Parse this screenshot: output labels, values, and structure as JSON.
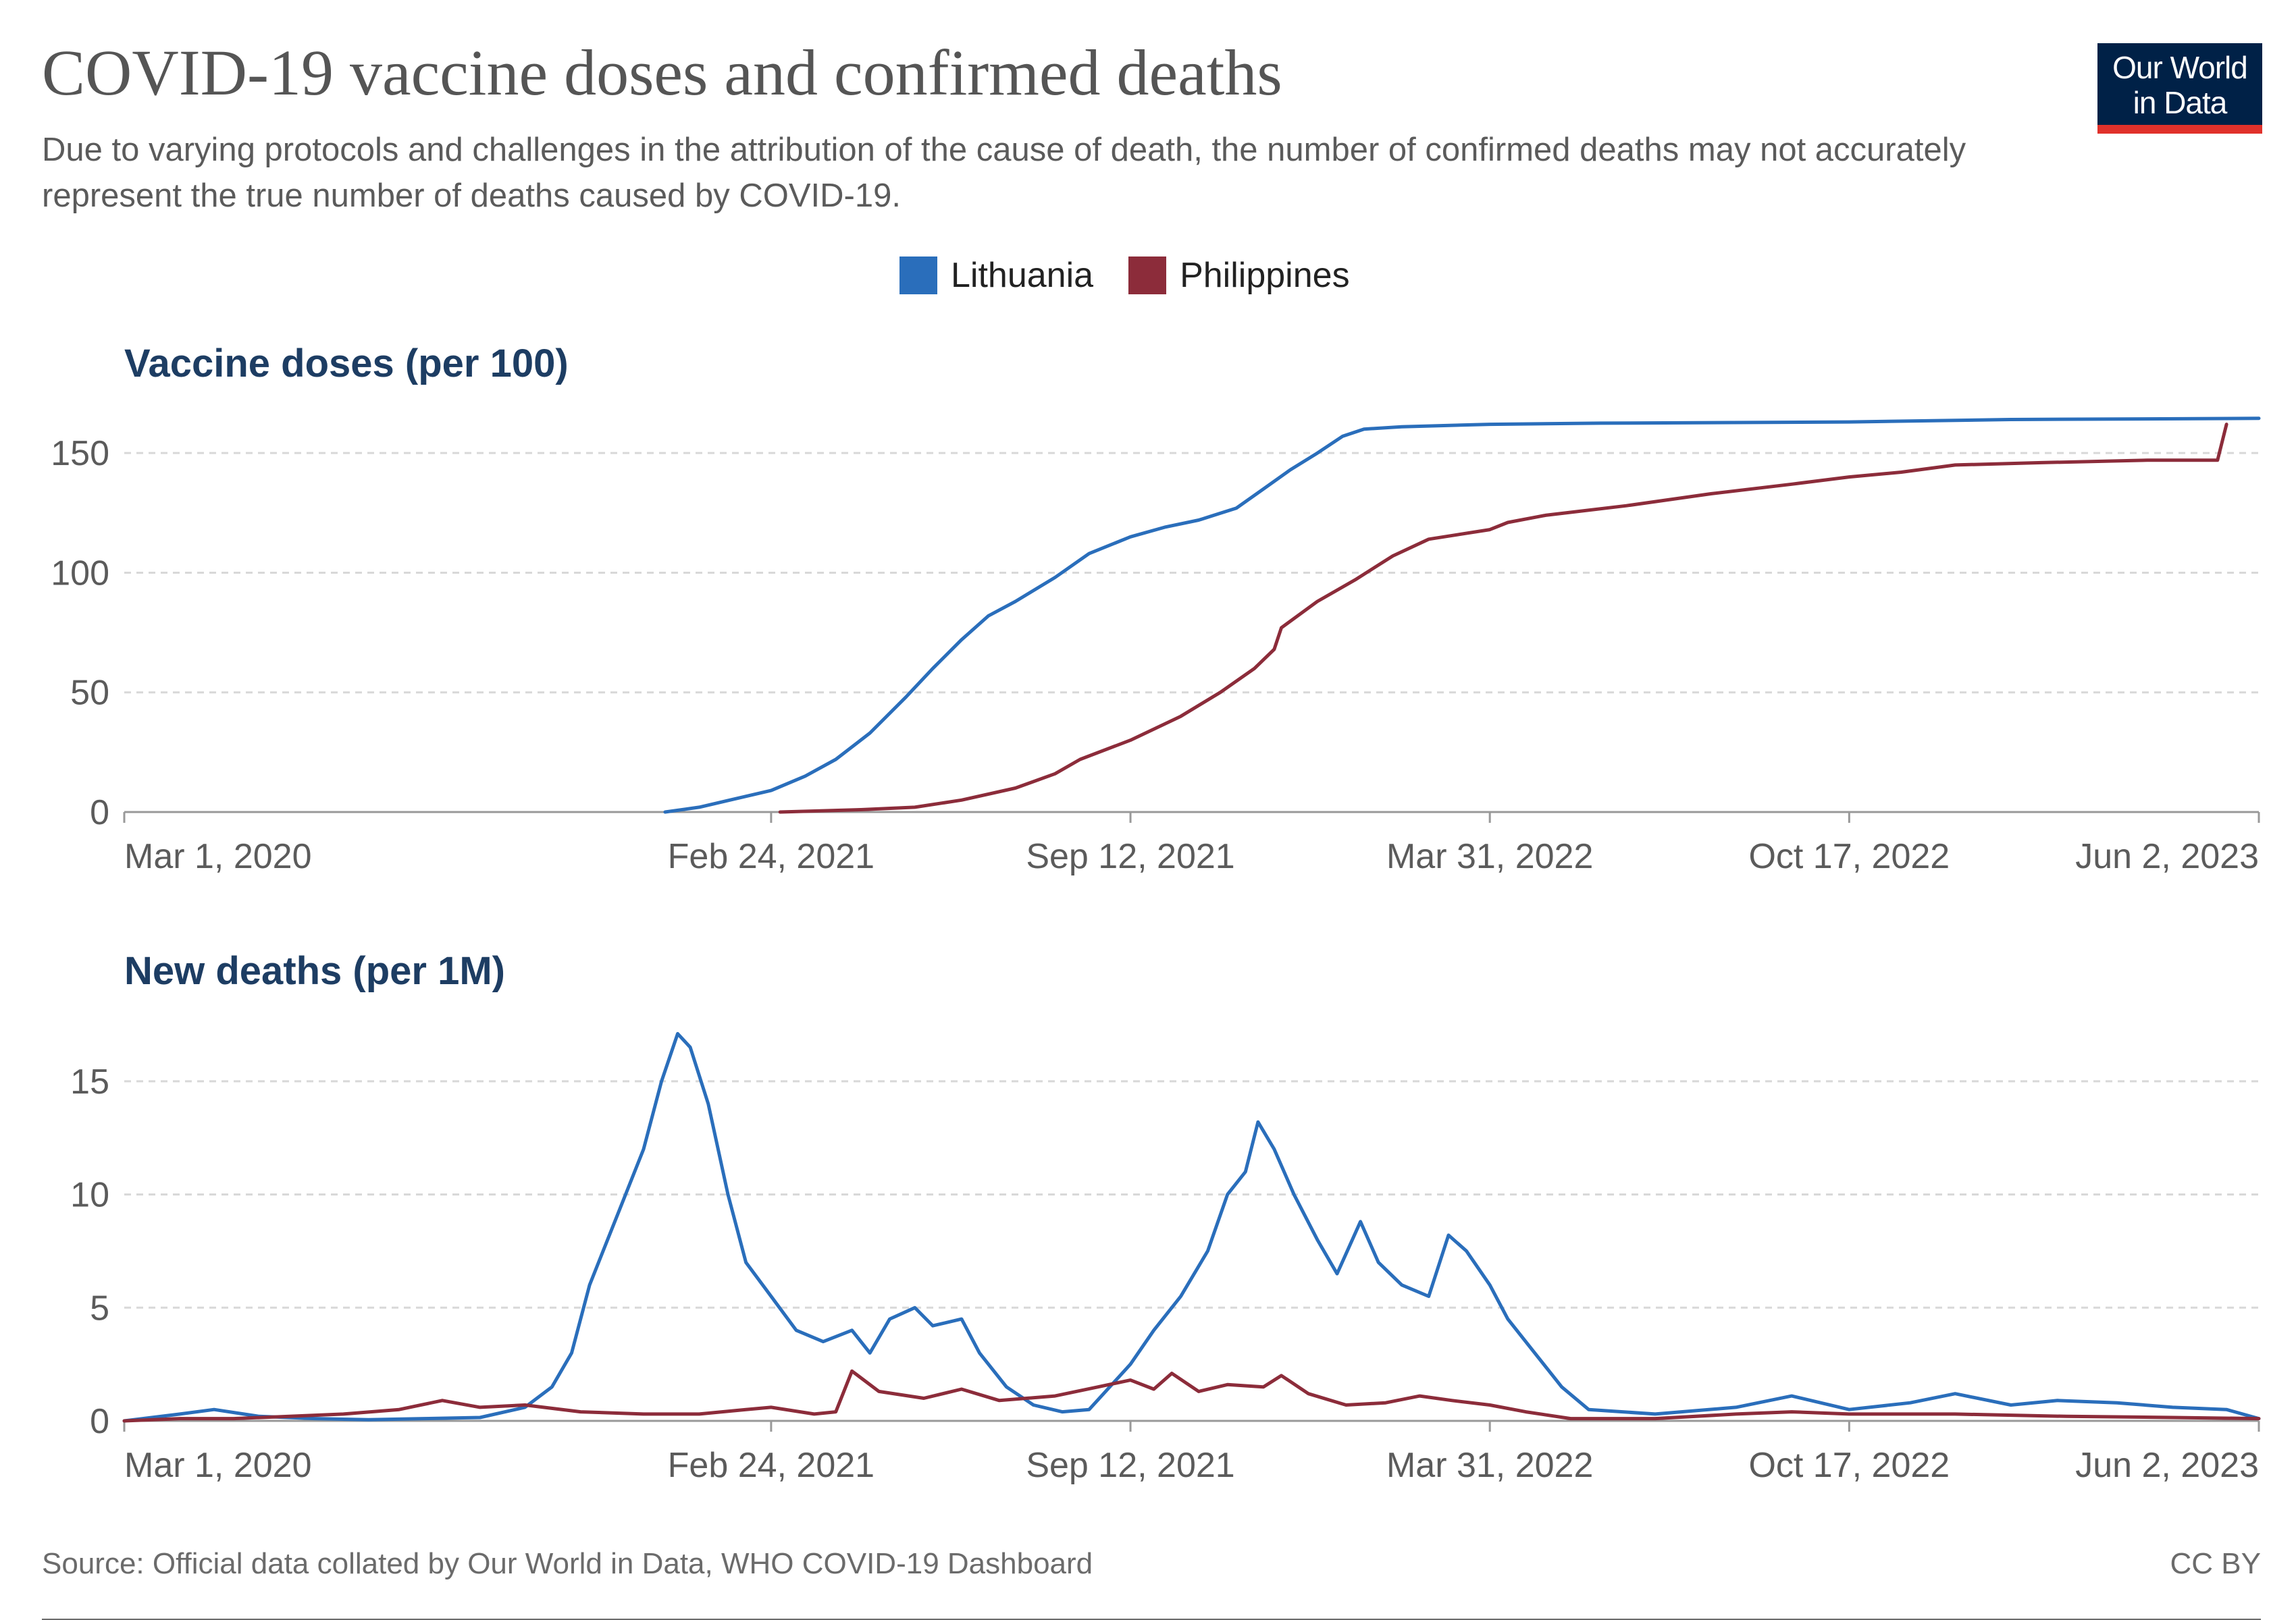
{
  "title": "COVID-19 vaccine doses and confirmed deaths",
  "subtitle": "Due to varying protocols and challenges in the attribution of the cause of death, the number of confirmed deaths may not accurately represent the true number of deaths caused by COVID-19.",
  "logo": {
    "line1": "Our World",
    "line2": "in Data"
  },
  "legend": [
    {
      "name": "Lithuania",
      "color": "#2a6ebb"
    },
    {
      "name": "Philippines",
      "color": "#8c2c3a"
    }
  ],
  "source": "Source: Official data collated by Our World in Data, WHO COVID-19 Dashboard",
  "license": "CC BY",
  "chart_data": [
    {
      "type": "line",
      "title": "Vaccine doses (per 100)",
      "xlabel": "",
      "ylabel": "",
      "x_range": [
        "2020-03-01",
        "2023-06-02"
      ],
      "ylim": [
        0,
        165
      ],
      "yticks": [
        "0",
        "50",
        "100",
        "150"
      ],
      "xticks": [
        "Mar 1, 2020",
        "Feb 24, 2021",
        "Sep 12, 2021",
        "Mar 31, 2022",
        "Oct 17, 2022",
        "Jun 2, 2023"
      ],
      "grid": true,
      "series": [
        {
          "name": "Lithuania",
          "color": "#2a6ebb",
          "points": [
            [
              "2020-12-27",
              0
            ],
            [
              "2021-01-15",
              2
            ],
            [
              "2021-02-01",
              5
            ],
            [
              "2021-02-24",
              9
            ],
            [
              "2021-03-15",
              15
            ],
            [
              "2021-04-01",
              22
            ],
            [
              "2021-04-20",
              33
            ],
            [
              "2021-05-10",
              48
            ],
            [
              "2021-05-25",
              60
            ],
            [
              "2021-06-10",
              72
            ],
            [
              "2021-06-25",
              82
            ],
            [
              "2021-07-10",
              88
            ],
            [
              "2021-08-01",
              98
            ],
            [
              "2021-08-20",
              108
            ],
            [
              "2021-09-12",
              115
            ],
            [
              "2021-10-01",
              119
            ],
            [
              "2021-10-20",
              122
            ],
            [
              "2021-11-10",
              127
            ],
            [
              "2021-11-25",
              135
            ],
            [
              "2021-12-10",
              143
            ],
            [
              "2021-12-25",
              150
            ],
            [
              "2022-01-08",
              157
            ],
            [
              "2022-01-20",
              160
            ],
            [
              "2022-02-10",
              161
            ],
            [
              "2022-03-31",
              162
            ],
            [
              "2022-06-01",
              162.5
            ],
            [
              "2022-10-17",
              163
            ],
            [
              "2023-01-15",
              164
            ],
            [
              "2023-06-02",
              164.5
            ]
          ]
        },
        {
          "name": "Philippines",
          "color": "#8c2c3a",
          "points": [
            [
              "2021-03-01",
              0
            ],
            [
              "2021-04-15",
              1
            ],
            [
              "2021-05-15",
              2
            ],
            [
              "2021-06-10",
              5
            ],
            [
              "2021-07-10",
              10
            ],
            [
              "2021-08-01",
              16
            ],
            [
              "2021-08-15",
              22
            ],
            [
              "2021-09-12",
              30
            ],
            [
              "2021-10-10",
              40
            ],
            [
              "2021-11-01",
              50
            ],
            [
              "2021-11-20",
              60
            ],
            [
              "2021-12-01",
              68
            ],
            [
              "2021-12-05",
              77
            ],
            [
              "2021-12-25",
              88
            ],
            [
              "2022-01-15",
              97
            ],
            [
              "2022-02-05",
              107
            ],
            [
              "2022-02-25",
              114
            ],
            [
              "2022-03-31",
              118
            ],
            [
              "2022-04-10",
              121
            ],
            [
              "2022-05-01",
              124
            ],
            [
              "2022-06-15",
              128
            ],
            [
              "2022-08-01",
              133
            ],
            [
              "2022-09-15",
              137
            ],
            [
              "2022-10-17",
              140
            ],
            [
              "2022-11-15",
              142
            ],
            [
              "2022-12-15",
              145
            ],
            [
              "2023-02-01",
              146
            ],
            [
              "2023-04-01",
              147
            ],
            [
              "2023-05-10",
              147
            ],
            [
              "2023-05-15",
              162
            ]
          ]
        }
      ]
    },
    {
      "type": "line",
      "title": "New deaths (per 1M)",
      "xlabel": "",
      "ylabel": "",
      "x_range": [
        "2020-03-01",
        "2023-06-02"
      ],
      "ylim": [
        0,
        17.5
      ],
      "yticks": [
        "0",
        "5",
        "10",
        "15"
      ],
      "xticks": [
        "Mar 1, 2020",
        "Feb 24, 2021",
        "Sep 12, 2021",
        "Mar 31, 2022",
        "Oct 17, 2022",
        "Jun 2, 2023"
      ],
      "grid": true,
      "series": [
        {
          "name": "Lithuania",
          "color": "#2a6ebb",
          "points": [
            [
              "2020-03-01",
              0
            ],
            [
              "2020-04-01",
              0.3
            ],
            [
              "2020-04-20",
              0.5
            ],
            [
              "2020-05-15",
              0.2
            ],
            [
              "2020-06-15",
              0.1
            ],
            [
              "2020-07-15",
              0.05
            ],
            [
              "2020-08-15",
              0.1
            ],
            [
              "2020-09-15",
              0.15
            ],
            [
              "2020-10-10",
              0.6
            ],
            [
              "2020-10-25",
              1.5
            ],
            [
              "2020-11-05",
              3
            ],
            [
              "2020-11-15",
              6
            ],
            [
              "2020-11-25",
              8
            ],
            [
              "2020-12-05",
              10
            ],
            [
              "2020-12-15",
              12
            ],
            [
              "2020-12-25",
              15
            ],
            [
              "2021-01-03",
              17.1
            ],
            [
              "2021-01-10",
              16.5
            ],
            [
              "2021-01-20",
              14
            ],
            [
              "2021-01-31",
              10
            ],
            [
              "2021-02-10",
              7
            ],
            [
              "2021-02-24",
              5.5
            ],
            [
              "2021-03-10",
              4
            ],
            [
              "2021-03-25",
              3.5
            ],
            [
              "2021-04-10",
              4
            ],
            [
              "2021-04-20",
              3
            ],
            [
              "2021-05-01",
              4.5
            ],
            [
              "2021-05-15",
              5
            ],
            [
              "2021-05-25",
              4.2
            ],
            [
              "2021-06-10",
              4.5
            ],
            [
              "2021-06-20",
              3
            ],
            [
              "2021-07-05",
              1.5
            ],
            [
              "2021-07-20",
              0.7
            ],
            [
              "2021-08-05",
              0.4
            ],
            [
              "2021-08-20",
              0.5
            ],
            [
              "2021-09-12",
              2.5
            ],
            [
              "2021-09-25",
              4
            ],
            [
              "2021-10-10",
              5.5
            ],
            [
              "2021-10-25",
              7.5
            ],
            [
              "2021-11-05",
              10
            ],
            [
              "2021-11-15",
              11
            ],
            [
              "2021-11-22",
              13.2
            ],
            [
              "2021-12-01",
              12
            ],
            [
              "2021-12-12",
              10
            ],
            [
              "2021-12-25",
              8
            ],
            [
              "2022-01-05",
              6.5
            ],
            [
              "2022-01-18",
              8.8
            ],
            [
              "2022-01-28",
              7
            ],
            [
              "2022-02-10",
              6
            ],
            [
              "2022-02-25",
              5.5
            ],
            [
              "2022-03-08",
              8.2
            ],
            [
              "2022-03-18",
              7.5
            ],
            [
              "2022-03-31",
              6
            ],
            [
              "2022-04-10",
              4.5
            ],
            [
              "2022-04-25",
              3
            ],
            [
              "2022-05-10",
              1.5
            ],
            [
              "2022-05-25",
              0.5
            ],
            [
              "2022-07-01",
              0.3
            ],
            [
              "2022-08-15",
              0.6
            ],
            [
              "2022-09-15",
              1.1
            ],
            [
              "2022-10-17",
              0.5
            ],
            [
              "2022-11-20",
              0.8
            ],
            [
              "2022-12-15",
              1.2
            ],
            [
              "2023-01-15",
              0.7
            ],
            [
              "2023-02-10",
              0.9
            ],
            [
              "2023-03-15",
              0.8
            ],
            [
              "2023-04-15",
              0.6
            ],
            [
              "2023-05-15",
              0.5
            ],
            [
              "2023-06-02",
              0.1
            ]
          ]
        },
        {
          "name": "Philippines",
          "color": "#8c2c3a",
          "points": [
            [
              "2020-03-01",
              0
            ],
            [
              "2020-04-01",
              0.1
            ],
            [
              "2020-05-01",
              0.1
            ],
            [
              "2020-06-01",
              0.2
            ],
            [
              "2020-07-01",
              0.3
            ],
            [
              "2020-08-01",
              0.5
            ],
            [
              "2020-08-25",
              0.9
            ],
            [
              "2020-09-15",
              0.6
            ],
            [
              "2020-10-10",
              0.7
            ],
            [
              "2020-11-10",
              0.4
            ],
            [
              "2020-12-15",
              0.3
            ],
            [
              "2021-01-15",
              0.3
            ],
            [
              "2021-02-10",
              0.5
            ],
            [
              "2021-02-24",
              0.6
            ],
            [
              "2021-03-20",
              0.3
            ],
            [
              "2021-04-01",
              0.4
            ],
            [
              "2021-04-10",
              2.2
            ],
            [
              "2021-04-25",
              1.3
            ],
            [
              "2021-05-20",
              1
            ],
            [
              "2021-06-10",
              1.4
            ],
            [
              "2021-07-01",
              0.9
            ],
            [
              "2021-08-01",
              1.1
            ],
            [
              "2021-08-25",
              1.5
            ],
            [
              "2021-09-12",
              1.8
            ],
            [
              "2021-09-25",
              1.4
            ],
            [
              "2021-10-05",
              2.1
            ],
            [
              "2021-10-20",
              1.3
            ],
            [
              "2021-11-05",
              1.6
            ],
            [
              "2021-11-25",
              1.5
            ],
            [
              "2021-12-05",
              2
            ],
            [
              "2021-12-20",
              1.2
            ],
            [
              "2022-01-10",
              0.7
            ],
            [
              "2022-02-01",
              0.8
            ],
            [
              "2022-02-20",
              1.1
            ],
            [
              "2022-03-10",
              0.9
            ],
            [
              "2022-03-31",
              0.7
            ],
            [
              "2022-04-20",
              0.4
            ],
            [
              "2022-05-15",
              0.1
            ],
            [
              "2022-07-01",
              0.1
            ],
            [
              "2022-08-15",
              0.3
            ],
            [
              "2022-09-15",
              0.4
            ],
            [
              "2022-10-17",
              0.3
            ],
            [
              "2022-12-15",
              0.3
            ],
            [
              "2023-02-15",
              0.2
            ],
            [
              "2023-04-15",
              0.15
            ],
            [
              "2023-06-02",
              0.1
            ]
          ]
        }
      ]
    }
  ]
}
